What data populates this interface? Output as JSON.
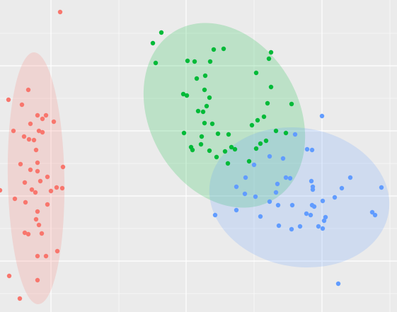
{
  "chart_data": {
    "type": "scatter",
    "xlim": [
      0,
      561
    ],
    "ylim": [
      0,
      441
    ],
    "xticks": [
      72,
      168,
      263,
      359,
      455,
      551
    ],
    "yticks": [
      26,
      72,
      118,
      164,
      210,
      256,
      302,
      348,
      394
    ],
    "grid": true,
    "background": "#ebebeb",
    "series": [
      {
        "color": "#F8766D",
        "x": [
          85,
          40,
          12,
          31,
          65,
          53,
          60,
          76,
          43,
          19,
          55,
          60,
          34,
          41,
          48,
          51,
          29,
          53,
          89,
          43,
          53,
          67,
          57,
          35,
          80,
          88,
          72,
          45,
          50,
          0,
          21,
          36,
          67,
          53,
          51,
          55,
          59,
          35,
          40,
          81,
          53,
          65,
          13,
          53,
          28
        ],
        "values": [
          424,
          314,
          300,
          293,
          278,
          278,
          273,
          269,
          266,
          256,
          256,
          254,
          248,
          244,
          243,
          229,
          209,
          211,
          205,
          201,
          199,
          191,
          185,
          183,
          176,
          175,
          171,
          173,
          169,
          172,
          160,
          155,
          152,
          142,
          131,
          123,
          111,
          112,
          110,
          86,
          79,
          79,
          51,
          45,
          19
        ],
        "ellipse": {
          "cx": 51,
          "cy": 189,
          "rx": 40,
          "ry": 178,
          "angle": 1
        }
      },
      {
        "color": "#00BA38",
        "x": [
          228,
          216,
          302,
          316,
          383,
          380,
          220,
          265,
          275,
          297,
          362,
          290,
          278,
          383,
          289,
          259,
          264,
          296,
          378,
          280,
          287,
          292,
          412,
          373,
          364,
          356,
          289,
          300,
          390,
          404,
          260,
          323,
          285,
          308,
          376,
          368,
          270,
          284,
          296,
          327,
          332,
          318,
          352,
          322,
          306,
          272,
          362
        ],
        "values": [
          395,
          380,
          371,
          372,
          367,
          358,
          352,
          355,
          354,
          354,
          338,
          334,
          330,
          318,
          314,
          308,
          306,
          303,
          295,
          284,
          283,
          291,
          294,
          276,
          271,
          264,
          267,
          266,
          256,
          253,
          253,
          251,
          248,
          252,
          242,
          238,
          233,
          237,
          228,
          233,
          230,
          227,
          213,
          210,
          219,
          229,
          231
        ],
        "ellipse": {
          "cx": 317,
          "cy": 278,
          "rx": 105,
          "ry": 138,
          "angle": 30
        }
      },
      {
        "color": "#619CFF",
        "x": [
          455,
          417,
          434,
          441,
          381,
          400,
          359,
          347,
          404,
          410,
          440,
          495,
          334,
          392,
          442,
          442,
          483,
          539,
          346,
          390,
          473,
          361,
          381,
          334,
          304,
          393,
          413,
          441,
          456,
          444,
          433,
          460,
          526,
          530,
          368,
          458,
          412,
          394,
          424,
          450,
          456,
          478,
          439
        ],
        "values": [
          277,
          251,
          230,
          229,
          220,
          217,
          208,
          190,
          190,
          189,
          185,
          190,
          177,
          181,
          177,
          173,
          175,
          176,
          167,
          169,
          162,
          163,
          156,
          144,
          137,
          151,
          151,
          151,
          157,
          149,
          139,
          134,
          141,
          137,
          135,
          129,
          117,
          122,
          121,
          121,
          118,
          40,
          137
        ],
        "ellipse": {
          "cx": 423,
          "cy": 162,
          "rx": 128,
          "ry": 98,
          "angle": -10
        }
      }
    ]
  }
}
